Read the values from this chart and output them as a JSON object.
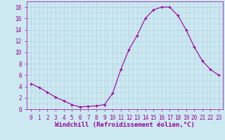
{
  "x": [
    0,
    1,
    2,
    3,
    4,
    5,
    6,
    7,
    8,
    9,
    10,
    11,
    12,
    13,
    14,
    15,
    16,
    17,
    18,
    19,
    20,
    21,
    22,
    23
  ],
  "y": [
    4.5,
    3.8,
    3.0,
    2.1,
    1.5,
    0.8,
    0.4,
    0.5,
    0.6,
    0.8,
    2.8,
    7.0,
    10.5,
    13.0,
    16.0,
    17.5,
    18.0,
    18.0,
    16.5,
    14.0,
    11.0,
    8.5,
    7.0,
    6.0
  ],
  "line_color": "#990099",
  "marker": "+",
  "bg_color": "#cce8f0",
  "grid_color": "#aaccdd",
  "xlabel": "Windchill (Refroidissement éolien,°C)",
  "xlabel_color": "#990099",
  "tick_color": "#990099",
  "ylim": [
    0,
    19
  ],
  "xlim": [
    -0.5,
    23.5
  ],
  "yticks": [
    0,
    2,
    4,
    6,
    8,
    10,
    12,
    14,
    16,
    18
  ],
  "xticks": [
    0,
    1,
    2,
    3,
    4,
    5,
    6,
    7,
    8,
    9,
    10,
    11,
    12,
    13,
    14,
    15,
    16,
    17,
    18,
    19,
    20,
    21,
    22,
    23
  ],
  "font_size": 5.5,
  "label_font_size": 6.5
}
